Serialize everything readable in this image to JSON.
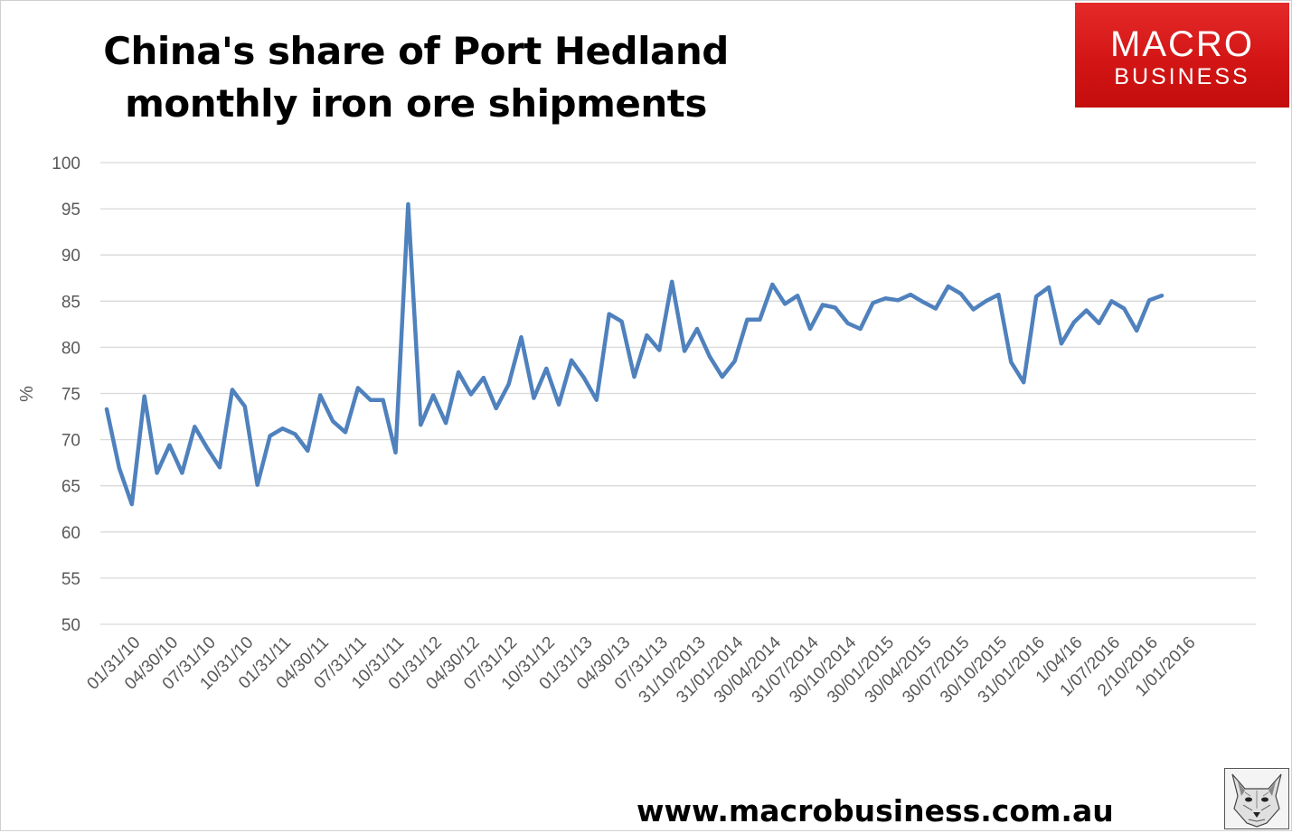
{
  "header": {
    "title_line1": "China's share of Port Hedland",
    "title_line2": "monthly iron ore shipments"
  },
  "logo": {
    "line1": "MACRO",
    "line2": "BUSINESS",
    "background_color": "#d81b1b"
  },
  "footer": {
    "url": "www.macrobusiness.com.au"
  },
  "mascot": {
    "icon": "wolf-icon"
  },
  "chart_data": {
    "type": "line",
    "title": "China's share of Port Hedland monthly iron ore shipments",
    "xlabel": "",
    "ylabel": "%",
    "ylim": [
      50,
      100
    ],
    "yticks": [
      50,
      55,
      60,
      65,
      70,
      75,
      80,
      85,
      90,
      95,
      100
    ],
    "grid": true,
    "legend": "none",
    "line_color": "#4f81bd",
    "x_tick_labels": [
      "01/31/10",
      "04/30/10",
      "07/31/10",
      "10/31/10",
      "01/31/11",
      "04/30/11",
      "07/31/11",
      "10/31/11",
      "01/31/12",
      "04/30/12",
      "07/31/12",
      "10/31/12",
      "01/31/13",
      "04/30/13",
      "07/31/13",
      "31/10/2013",
      "31/01/2014",
      "30/04/2014",
      "31/07/2014",
      "30/10/2014",
      "30/01/2015",
      "30/04/2015",
      "30/07/2015",
      "30/10/2015",
      "31/01/2016",
      "1/04/16",
      "1/07/2016",
      "2/10/2016",
      "1/01/2016"
    ],
    "series": [
      {
        "values": [
          73.3,
          66.9,
          63.0,
          74.7,
          66.4,
          69.4,
          66.4,
          71.4,
          69.1,
          67.0,
          75.4,
          73.6,
          65.1,
          70.4,
          71.2,
          70.6,
          68.8,
          74.8,
          72.0,
          70.8,
          75.6,
          74.3,
          74.3,
          68.6,
          95.5,
          71.6,
          74.8,
          71.8,
          77.3,
          74.9,
          76.7,
          73.4,
          76.0,
          81.1,
          74.5,
          77.7,
          73.8,
          78.6,
          76.7,
          74.3,
          83.6,
          82.8,
          76.8,
          81.3,
          79.7,
          87.1,
          79.6,
          82.0,
          79.0,
          76.8,
          78.5,
          83.0,
          83.0,
          86.8,
          84.7,
          85.6,
          82.0,
          84.6,
          84.3,
          82.6,
          82.0,
          84.8,
          85.3,
          85.1,
          85.7,
          84.9,
          84.2,
          86.6,
          85.8,
          84.1,
          85.0,
          85.7,
          78.4,
          76.2,
          85.5,
          86.5,
          80.4,
          82.7,
          84.0,
          82.6,
          85.0,
          84.2,
          81.8,
          85.1,
          85.6
        ]
      }
    ]
  }
}
